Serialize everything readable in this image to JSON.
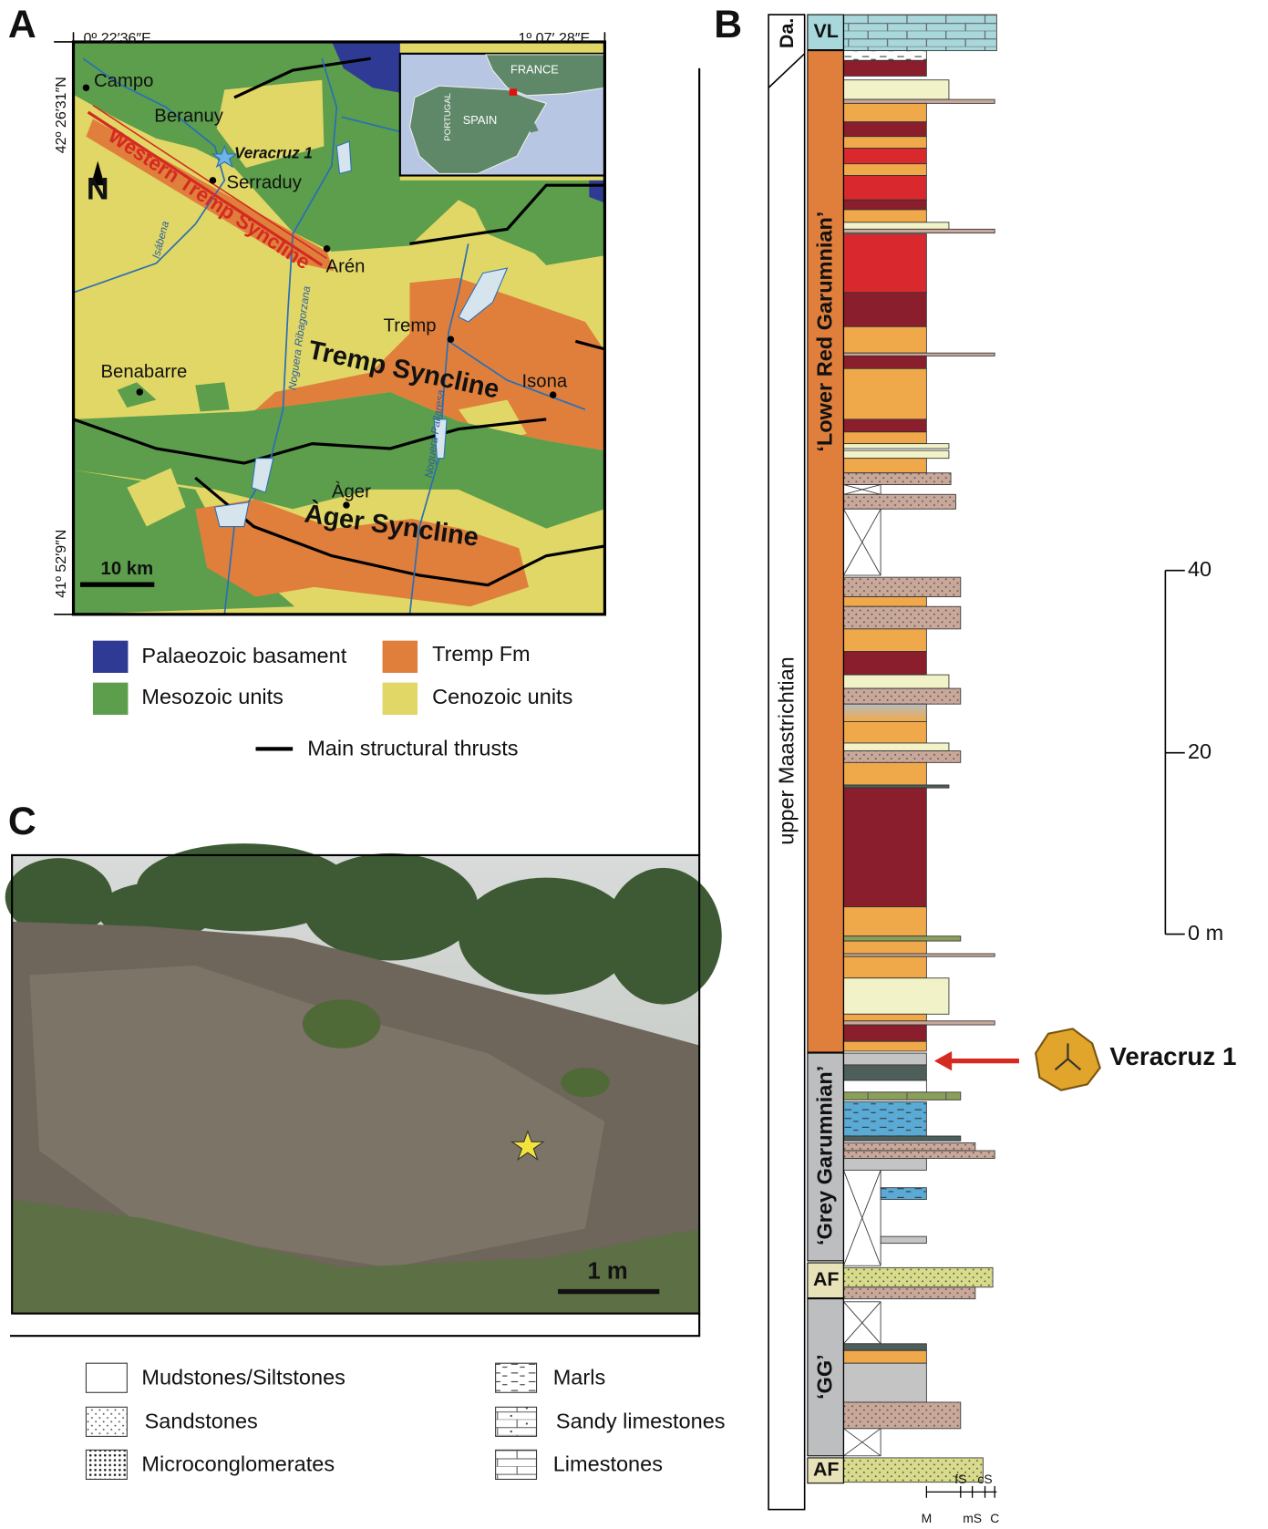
{
  "panel_labels": [
    "A",
    "B",
    "C"
  ],
  "map": {
    "coordinates": {
      "top_left": "0º 22′36″E",
      "top_right": "1º 07′ 28″E",
      "left_top": "42º 26′31″N",
      "left_bottom": "41º 52′9″N"
    },
    "places": [
      "Campo",
      "Beranuy",
      "Veracruz 1",
      "Serraduy",
      "Arén",
      "Tremp",
      "Benabarre",
      "Isona",
      "Àger"
    ],
    "structures": [
      "Western Tremp Syncline",
      "Tremp Syncline",
      "Àger Syncline"
    ],
    "rivers": [
      "Isábena",
      "Noguera Ribagorzana",
      "Noguera Pallaresa"
    ],
    "north": "N",
    "scale": "10 km",
    "inset": [
      "FRANCE",
      "SPAIN",
      "PORTUGAL"
    ]
  },
  "map_legend": {
    "items": [
      "Palaeozoic basament",
      "Tremp Fm",
      "Mesozoic units",
      "Cenozoic units"
    ],
    "thrusts": "Main structural thrusts"
  },
  "column": {
    "age_top": "Da.",
    "age": "upper Maastrichtian",
    "units": [
      "VL",
      "‘Lower Red Garumnian’",
      "‘Grey Garumnian’",
      "AF",
      "‘GG’",
      "AF"
    ],
    "scale": [
      "40",
      "20",
      "0 m"
    ],
    "grain_size": [
      "M",
      "fS",
      "mS",
      "cS",
      "C"
    ],
    "fossil": "Veracruz 1"
  },
  "photo": {
    "scale": "1 m"
  },
  "lithology_legend": [
    "Mudstones/Siltstones",
    "Sandstones",
    "Microconglomerates",
    "Marls",
    "Sandy limestones",
    "Limestones"
  ]
}
